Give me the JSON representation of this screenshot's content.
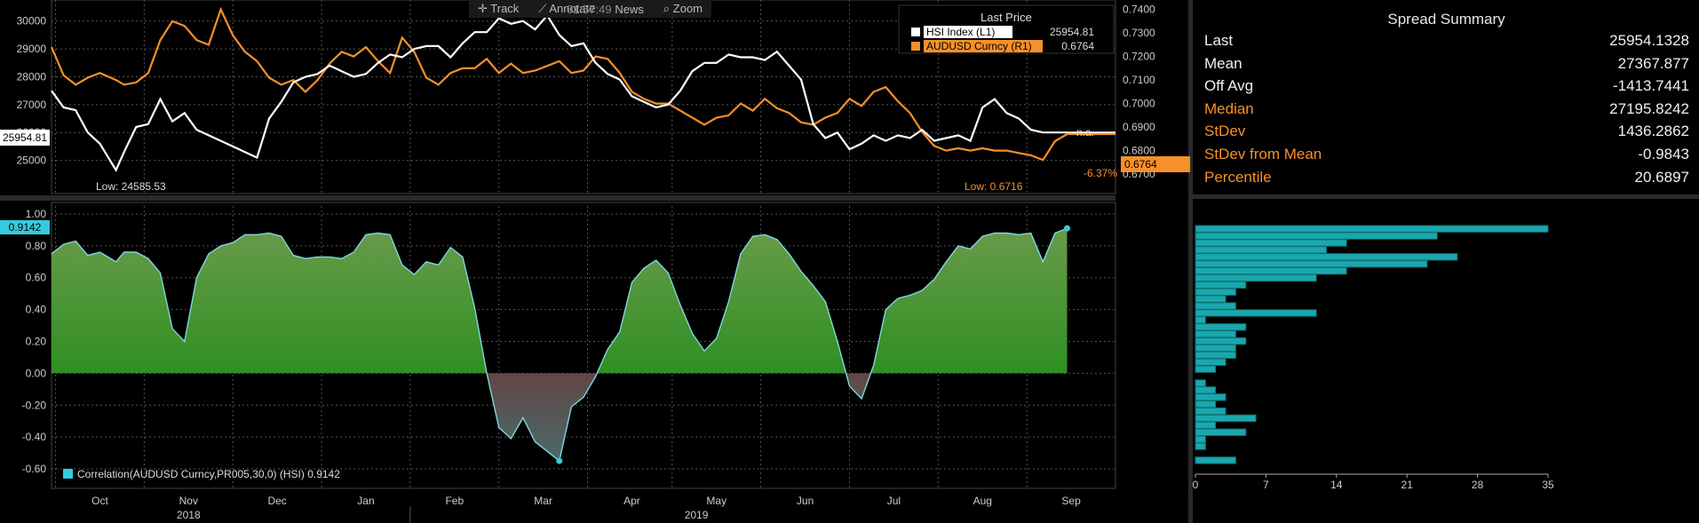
{
  "toolbar": {
    "track": "Track",
    "annotate": "Annotate",
    "news": "News",
    "zoom": "Zoom",
    "time": "01:57:49"
  },
  "legend": {
    "header": "Last Price",
    "items": [
      {
        "label": "HSI Index  (L1)",
        "value": "25954.81",
        "color": "#ffffff"
      },
      {
        "label": "AUDUSD Curncy  (R1)",
        "value": "0.6764",
        "color": "#f5902a"
      }
    ]
  },
  "price_annotations": {
    "hsi_low": "Low: 24585.53",
    "aud_low": "Low: 0.6716",
    "hsi_last_tag": "25954.81",
    "aud_last_tag": "0.6764",
    "na": "n.a.",
    "pct": "-6.37%"
  },
  "corr_label": "Correlation(AUDUSD Curncy,PR005,30,0) (HSI) 0.9142",
  "corr_tag": "0.9142",
  "summary": {
    "title": "Spread Summary",
    "rows": [
      {
        "label": "Last",
        "value": "25954.1328",
        "color": "white"
      },
      {
        "label": "Mean",
        "value": "27367.877",
        "color": "white"
      },
      {
        "label": "Off Avg",
        "value": "-1413.7441",
        "color": "white"
      },
      {
        "label": "Median",
        "value": "27195.8242",
        "color": "orange"
      },
      {
        "label": "StDev",
        "value": "1436.2862",
        "color": "orange"
      },
      {
        "label": "StDev from Mean",
        "value": "-0.9843",
        "color": "orange"
      },
      {
        "label": "Percentile",
        "value": "20.6897",
        "color": "orange"
      }
    ]
  },
  "months": [
    "Oct",
    "Nov",
    "Dec",
    "Jan",
    "Feb",
    "Mar",
    "Apr",
    "May",
    "Jun",
    "Jul",
    "Aug",
    "Sep"
  ],
  "years": [
    "2018",
    "2019"
  ],
  "chart_data": [
    {
      "type": "line",
      "x": [
        0,
        3,
        6,
        9,
        12,
        16,
        18,
        21,
        24,
        27,
        30,
        33,
        36,
        39,
        42,
        45,
        48,
        51,
        54,
        57,
        60,
        63,
        66,
        69,
        72,
        75,
        78,
        81,
        84,
        87,
        90,
        93,
        96,
        99,
        102,
        105,
        108,
        111,
        114,
        117,
        120,
        123,
        126,
        129,
        132,
        135,
        138,
        141,
        144,
        147,
        150,
        153,
        156,
        159,
        162,
        165,
        168,
        171,
        174,
        177,
        180,
        183,
        186,
        189,
        192,
        195,
        198,
        201,
        204,
        207,
        210,
        213,
        216,
        219,
        222,
        225,
        228,
        231,
        234,
        237,
        240,
        243,
        246,
        249,
        252
      ],
      "series": [
        {
          "name": "HSI Index  (L1)",
          "axis": "left",
          "values": [
            27500,
            26900,
            26800,
            26000,
            25600,
            24650,
            25300,
            26200,
            26300,
            27200,
            26400,
            26700,
            26100,
            25900,
            25700,
            25500,
            25300,
            25100,
            26500,
            27100,
            27800,
            28000,
            28100,
            28400,
            28200,
            28000,
            28100,
            28500,
            28800,
            28700,
            29000,
            29100,
            29100,
            28700,
            29200,
            29600,
            29600,
            30100,
            29900,
            30000,
            29700,
            30200,
            29500,
            29100,
            29200,
            28500,
            28100,
            27900,
            27300,
            27100,
            26900,
            27000,
            27500,
            28200,
            28500,
            28500,
            28800,
            28700,
            28700,
            28600,
            28900,
            28400,
            27900,
            26300,
            25800,
            26000,
            25400,
            25600,
            25900,
            25700,
            25900,
            25800,
            26100,
            25700,
            25800,
            25900,
            25700,
            26900,
            27200,
            26700,
            26500,
            26100,
            26000,
            26000,
            26000
          ]
        },
        {
          "name": "AUDUSD Curncy  (R1)",
          "axis": "right",
          "values": [
            0.724,
            0.712,
            0.708,
            0.711,
            0.713,
            0.71,
            0.708,
            0.709,
            0.713,
            0.727,
            0.735,
            0.733,
            0.727,
            0.725,
            0.74,
            0.729,
            0.722,
            0.718,
            0.711,
            0.708,
            0.71,
            0.705,
            0.71,
            0.717,
            0.722,
            0.72,
            0.724,
            0.718,
            0.713,
            0.728,
            0.722,
            0.711,
            0.708,
            0.713,
            0.715,
            0.715,
            0.719,
            0.713,
            0.717,
            0.713,
            0.714,
            0.716,
            0.718,
            0.713,
            0.714,
            0.72,
            0.719,
            0.713,
            0.705,
            0.702,
            0.7,
            0.7,
            0.697,
            0.694,
            0.691,
            0.694,
            0.695,
            0.7,
            0.697,
            0.702,
            0.698,
            0.696,
            0.692,
            0.691,
            0.694,
            0.696,
            0.702,
            0.699,
            0.705,
            0.707,
            0.701,
            0.696,
            0.688,
            0.682,
            0.68,
            0.681,
            0.68,
            0.681,
            0.68,
            0.68,
            0.679,
            0.678,
            0.676,
            0.684,
            0.687
          ]
        }
      ],
      "ylim_left": [
        24000,
        30500
      ],
      "yticks_left": [
        25000,
        26000,
        27000,
        28000,
        29000,
        30000
      ],
      "ylim_right": [
        0.664,
        0.741
      ],
      "yticks_right": [
        0.67,
        0.68,
        0.69,
        0.7,
        0.71,
        0.72,
        0.73,
        0.74
      ]
    },
    {
      "type": "area",
      "title": "",
      "x": [
        0,
        3,
        6,
        9,
        12,
        16,
        18,
        21,
        24,
        27,
        30,
        33,
        36,
        39,
        42,
        45,
        48,
        51,
        54,
        57,
        60,
        63,
        66,
        69,
        72,
        75,
        78,
        81,
        84,
        87,
        90,
        93,
        96,
        99,
        102,
        105,
        108,
        111,
        114,
        117,
        120,
        123,
        126,
        129,
        132,
        135,
        138,
        141,
        144,
        147,
        150,
        153,
        156,
        159,
        162,
        165,
        168,
        171,
        174,
        177,
        180,
        183,
        186,
        189,
        192,
        195,
        198,
        201,
        204,
        207,
        210,
        213,
        216,
        219,
        222,
        225,
        228,
        231,
        234,
        237,
        240,
        243,
        246,
        249,
        252
      ],
      "series": [
        {
          "name": "Correlation(AUDUSD Curncy,PR005,30,0) (HSI)",
          "values": [
            0.75,
            0.81,
            0.83,
            0.74,
            0.76,
            0.7,
            0.76,
            0.76,
            0.72,
            0.63,
            0.28,
            0.2,
            0.6,
            0.75,
            0.8,
            0.82,
            0.87,
            0.87,
            0.88,
            0.86,
            0.74,
            0.72,
            0.73,
            0.73,
            0.72,
            0.76,
            0.87,
            0.88,
            0.87,
            0.68,
            0.62,
            0.7,
            0.68,
            0.79,
            0.73,
            0.41,
            0.0,
            -0.34,
            -0.41,
            -0.28,
            -0.43,
            -0.49,
            -0.55,
            -0.21,
            -0.15,
            -0.02,
            0.15,
            0.26,
            0.57,
            0.66,
            0.71,
            0.63,
            0.43,
            0.25,
            0.14,
            0.22,
            0.45,
            0.75,
            0.86,
            0.87,
            0.84,
            0.75,
            0.64,
            0.55,
            0.45,
            0.2,
            -0.08,
            -0.16,
            0.05,
            0.4,
            0.47,
            0.49,
            0.52,
            0.59,
            0.7,
            0.8,
            0.78,
            0.86,
            0.88,
            0.88,
            0.87,
            0.88,
            0.7,
            0.88,
            0.91
          ]
        }
      ],
      "ylim": [
        -0.7,
        1.05
      ],
      "yticks": [
        -0.6,
        -0.4,
        -0.2,
        0.0,
        0.2,
        0.4,
        0.6,
        0.8,
        1.0
      ]
    },
    {
      "type": "bar",
      "orientation": "horizontal",
      "title": "",
      "values": [
        35,
        24,
        15,
        13,
        26,
        23,
        15,
        12,
        5,
        4,
        3,
        4,
        12,
        1,
        5,
        4,
        5,
        4,
        4,
        3,
        2,
        0,
        1,
        2,
        3,
        2,
        3,
        6,
        2,
        5,
        1,
        1,
        0,
        4
      ],
      "xticks": [
        0,
        7,
        14,
        21,
        28,
        35
      ],
      "xlim": [
        0,
        35
      ]
    }
  ]
}
